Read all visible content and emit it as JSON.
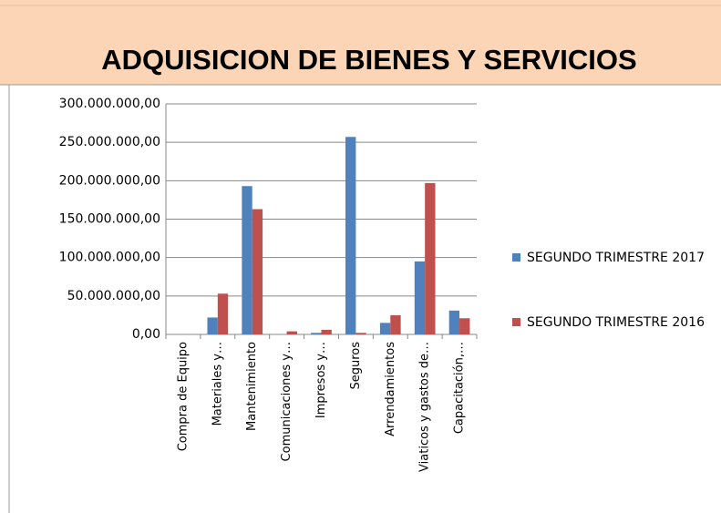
{
  "chart_data": {
    "type": "bar",
    "title": "ADQUISICION DE BIENES Y SERVICIOS",
    "categories": [
      "Compra de Equipo",
      "Materiales y…",
      "Mantenimiento",
      "Comunicaciones y…",
      "Impresos y…",
      "Seguros",
      "Arrendamientos",
      "Viaticos y gastos de…",
      "Capacitación,…"
    ],
    "series": [
      {
        "name": "SEGUNDO TRIMESTRE 2017",
        "color": "#4f81bd",
        "values": [
          0,
          22000000,
          193000000,
          0,
          2000000,
          257000000,
          15000000,
          95000000,
          31000000
        ]
      },
      {
        "name": "SEGUNDO TRIMESTRE 2016",
        "color": "#c0504d",
        "values": [
          0,
          53000000,
          163000000,
          4000000,
          6000000,
          2000000,
          25000000,
          197000000,
          21000000
        ]
      }
    ],
    "ylim": [
      0,
      300000000
    ],
    "yticks": [
      {
        "value": 0,
        "label": "0,00"
      },
      {
        "value": 50000000,
        "label": "50.000.000,00"
      },
      {
        "value": 100000000,
        "label": "100.000.000,00"
      },
      {
        "value": 150000000,
        "label": "150.000.000,00"
      },
      {
        "value": 200000000,
        "label": "200.000.000,00"
      },
      {
        "value": 250000000,
        "label": "250.000.000,00"
      },
      {
        "value": 300000000,
        "label": "300.000.000,00"
      }
    ],
    "grid": true,
    "legend": "right"
  }
}
